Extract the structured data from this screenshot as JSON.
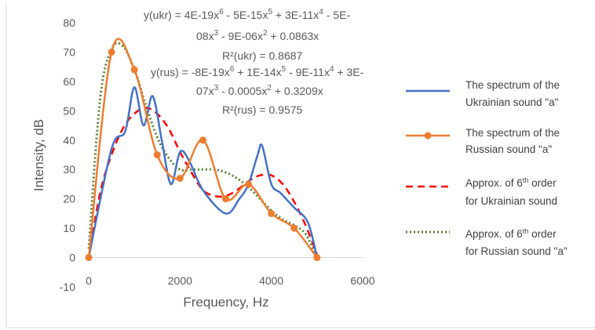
{
  "chart_data": {
    "type": "line",
    "xlabel": "Frequency, Hz",
    "ylabel": "Intensity, dB",
    "xlim": [
      0,
      6000
    ],
    "ylim": [
      -10,
      80
    ],
    "x_ticks": [
      "0",
      "2000",
      "4000",
      "6000"
    ],
    "y_ticks": [
      "-10",
      "0",
      "10",
      "20",
      "30",
      "40",
      "50",
      "60",
      "70",
      "80"
    ],
    "grid": false,
    "legend_position": "right",
    "series": [
      {
        "name": "The spectrum of the Ukrainian sound \"a\"",
        "color": "#4472C4",
        "style": "solid",
        "x": [
          0,
          500,
          800,
          1000,
          1200,
          1400,
          1600,
          1800,
          2000,
          2200,
          2500,
          3000,
          3300,
          3500,
          3700,
          3800,
          4000,
          4200,
          4500,
          4800,
          5000
        ],
        "y": [
          0,
          37,
          43,
          58,
          45,
          55,
          40,
          25,
          36,
          33,
          23,
          15,
          20,
          25,
          35,
          38,
          25,
          22,
          17,
          12,
          0
        ]
      },
      {
        "name": "The spectrum of the Russian sound \"a\"",
        "color": "#ED7D31",
        "style": "solid-markers",
        "x": [
          0,
          500,
          1000,
          1500,
          2000,
          2500,
          3000,
          3500,
          4000,
          4500,
          5000
        ],
        "y": [
          0,
          70,
          64,
          35,
          27,
          40,
          20,
          25,
          15,
          10,
          0
        ]
      },
      {
        "name": "Approx. of 6th order for Ukrainian sound",
        "color": "#FF0000",
        "style": "dashed",
        "x": [
          0,
          250,
          500,
          750,
          1000,
          1250,
          1500,
          1750,
          2000,
          2250,
          2500,
          2750,
          3000,
          3250,
          3500,
          3750,
          4000,
          4250,
          4500,
          4750,
          5000
        ],
        "y": [
          0,
          22,
          35,
          44,
          49,
          51,
          49,
          44,
          36,
          29,
          23,
          21,
          21,
          23,
          26,
          28,
          28,
          25,
          19,
          11,
          1
        ]
      },
      {
        "name": "Approx. of 6th order for Russian sound \"a\"",
        "color": "#548235",
        "style": "dotted",
        "x": [
          0,
          250,
          500,
          750,
          1000,
          1250,
          1500,
          1750,
          2000,
          2250,
          2500,
          2750,
          3000,
          3250,
          3500,
          3750,
          4000,
          4250,
          4500,
          4750,
          5000
        ],
        "y": [
          3,
          54,
          71,
          72,
          64,
          52,
          41,
          34,
          30,
          30,
          30,
          30,
          29,
          27,
          24,
          20,
          16,
          13,
          11,
          8,
          0
        ]
      }
    ],
    "legend": [
      {
        "line1": "The spectrum of the",
        "line2": "Ukrainian sound \"a\""
      },
      {
        "line1": "The spectrum of the",
        "line2": "Russian sound \"a\""
      },
      {
        "line1": "Approx. of 6th order",
        "line2": "for Ukrainian sound"
      },
      {
        "line1": "Approx. of 6th order",
        "line2": "for Russian sound \"a\""
      }
    ],
    "annotations": {
      "ukr_eq_line1": "y(ukr) = 4E-19x6 - 5E-15x5 + 3E-11x4 - 5E-",
      "ukr_eq_line2": "08x3 - 9E-06x2 + 0.0863x",
      "ukr_r2": "R²(ukr) = 0.8687",
      "rus_eq_line1": "y(rus) = -8E-19x6 + 1E-14x5 - 9E-11x4 + 3E-",
      "rus_eq_line2": "07x3 - 0.0005x2 + 0.3209x",
      "rus_r2": "R²(rus) = 0.9575"
    }
  }
}
